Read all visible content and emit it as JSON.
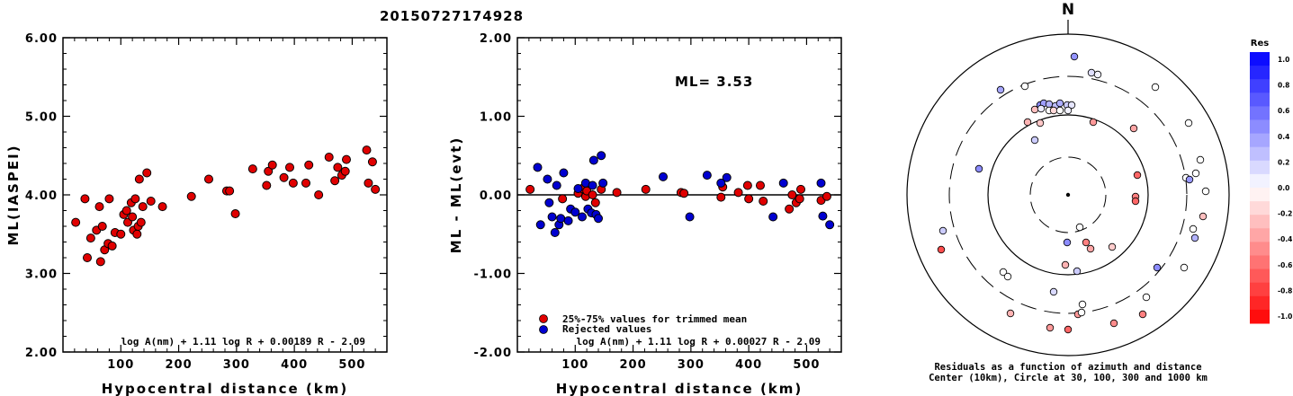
{
  "title": "20150727174928",
  "chart_data": [
    {
      "type": "scatter",
      "xlabel": "Hypocentral distance (km)",
      "ylabel": "ML(IASPEI)",
      "xlim": [
        0,
        560
      ],
      "ylim": [
        2.0,
        6.0
      ],
      "xticks": [
        "100",
        "200",
        "300",
        "400",
        "500"
      ],
      "yticks": [
        "2.00",
        "3.00",
        "4.00",
        "5.00",
        "6.00"
      ],
      "formula": "log A(nm) + 1.11 log R + 0.00189 R - 2.09",
      "series": [
        {
          "color": "#e00000",
          "points": [
            [
              22,
              3.65
            ],
            [
              38,
              3.95
            ],
            [
              42,
              3.2
            ],
            [
              48,
              3.45
            ],
            [
              58,
              3.55
            ],
            [
              63,
              3.85
            ],
            [
              65,
              3.15
            ],
            [
              68,
              3.6
            ],
            [
              72,
              3.3
            ],
            [
              78,
              3.38
            ],
            [
              80,
              3.95
            ],
            [
              85,
              3.35
            ],
            [
              90,
              3.52
            ],
            [
              100,
              3.5
            ],
            [
              105,
              3.75
            ],
            [
              110,
              3.8
            ],
            [
              112,
              3.65
            ],
            [
              118,
              3.9
            ],
            [
              120,
              3.72
            ],
            [
              122,
              3.55
            ],
            [
              125,
              3.95
            ],
            [
              128,
              3.5
            ],
            [
              130,
              3.6
            ],
            [
              132,
              4.2
            ],
            [
              135,
              3.65
            ],
            [
              138,
              3.85
            ],
            [
              145,
              4.28
            ],
            [
              152,
              3.92
            ],
            [
              172,
              3.85
            ],
            [
              222,
              3.98
            ],
            [
              252,
              4.2
            ],
            [
              283,
              4.05
            ],
            [
              288,
              4.05
            ],
            [
              298,
              3.76
            ],
            [
              328,
              4.33
            ],
            [
              352,
              4.12
            ],
            [
              355,
              4.3
            ],
            [
              362,
              4.38
            ],
            [
              382,
              4.22
            ],
            [
              392,
              4.35
            ],
            [
              398,
              4.15
            ],
            [
              420,
              4.15
            ],
            [
              425,
              4.38
            ],
            [
              442,
              4.0
            ],
            [
              460,
              4.48
            ],
            [
              470,
              4.18
            ],
            [
              475,
              4.35
            ],
            [
              482,
              4.25
            ],
            [
              488,
              4.3
            ],
            [
              490,
              4.45
            ],
            [
              525,
              4.57
            ],
            [
              528,
              4.15
            ],
            [
              535,
              4.42
            ],
            [
              540,
              4.07
            ]
          ]
        }
      ]
    },
    {
      "type": "scatter",
      "xlabel": "Hypocentral distance (km)",
      "ylabel": "ML - ML(evt)",
      "xlim": [
        0,
        560
      ],
      "ylim": [
        -2.0,
        2.0
      ],
      "xticks": [
        "100",
        "200",
        "300",
        "400",
        "500"
      ],
      "yticks": [
        "-2.00",
        "-1.00",
        "0.00",
        "1.00",
        "2.00"
      ],
      "annotation": "ML= 3.53",
      "formula": "log A(nm) + 1.11 log R + 0.00027 R - 2.09",
      "legend": [
        "25%-75% values for trimmed mean",
        "Rejected values"
      ],
      "series": [
        {
          "name": "25%-75% values for trimmed mean",
          "color": "#e00000",
          "points": [
            [
              22,
              0.07
            ],
            [
              78,
              -0.05
            ],
            [
              105,
              0.02
            ],
            [
              112,
              0.08
            ],
            [
              118,
              -0.02
            ],
            [
              120,
              0.05
            ],
            [
              130,
              0.0
            ],
            [
              135,
              -0.1
            ],
            [
              145,
              0.07
            ],
            [
              172,
              0.03
            ],
            [
              222,
              0.07
            ],
            [
              283,
              0.03
            ],
            [
              288,
              0.02
            ],
            [
              352,
              -0.03
            ],
            [
              355,
              0.1
            ],
            [
              382,
              0.03
            ],
            [
              398,
              0.12
            ],
            [
              400,
              -0.05
            ],
            [
              420,
              0.12
            ],
            [
              425,
              -0.08
            ],
            [
              470,
              -0.18
            ],
            [
              475,
              0.0
            ],
            [
              482,
              -0.1
            ],
            [
              488,
              -0.05
            ],
            [
              490,
              0.07
            ],
            [
              525,
              -0.07
            ],
            [
              535,
              -0.02
            ]
          ]
        },
        {
          "name": "Rejected values",
          "color": "#0000d0",
          "points": [
            [
              35,
              0.35
            ],
            [
              40,
              -0.38
            ],
            [
              52,
              0.2
            ],
            [
              55,
              -0.1
            ],
            [
              60,
              -0.28
            ],
            [
              65,
              -0.48
            ],
            [
              68,
              0.12
            ],
            [
              72,
              -0.38
            ],
            [
              75,
              -0.3
            ],
            [
              80,
              0.28
            ],
            [
              88,
              -0.33
            ],
            [
              92,
              -0.18
            ],
            [
              100,
              -0.22
            ],
            [
              105,
              0.08
            ],
            [
              112,
              -0.28
            ],
            [
              118,
              0.15
            ],
            [
              122,
              -0.18
            ],
            [
              128,
              -0.23
            ],
            [
              130,
              0.12
            ],
            [
              132,
              0.44
            ],
            [
              136,
              -0.25
            ],
            [
              140,
              -0.3
            ],
            [
              145,
              0.5
            ],
            [
              148,
              0.15
            ],
            [
              252,
              0.23
            ],
            [
              298,
              -0.28
            ],
            [
              328,
              0.25
            ],
            [
              352,
              0.15
            ],
            [
              362,
              0.22
            ],
            [
              442,
              -0.28
            ],
            [
              460,
              0.15
            ],
            [
              525,
              0.15
            ],
            [
              528,
              -0.27
            ],
            [
              540,
              -0.38
            ]
          ]
        }
      ]
    },
    {
      "type": "polar-scatter",
      "north_label": "N",
      "caption_line1": "Residuals as a function of azimuth and distance",
      "caption_line2": "Center (10km), Circle at 30, 100, 300 and 1000 km",
      "colorbar_title": "Res",
      "colorbar_ticks": [
        "1.0",
        "0.8",
        "0.6",
        "0.4",
        "0.2",
        "0.0",
        "-0.2",
        "-0.4",
        "-0.6",
        "-0.8",
        "-1.0"
      ],
      "points": [
        [
          0,
          -0.02
        ],
        [
          0,
          0.05
        ],
        [
          0,
          -0.1
        ],
        [
          0,
          0.35
        ],
        [
          0,
          0.2
        ],
        [
          0,
          0.12
        ],
        [
          0,
          0.18
        ],
        [
          0,
          0.4
        ],
        [
          0,
          0.25
        ],
        [
          0,
          0.3
        ],
        [
          0,
          -0.35
        ],
        [
          0,
          0.22
        ],
        [
          0,
          0.15
        ],
        [
          0,
          0.0
        ],
        [
          0,
          -0.05
        ],
        [
          0,
          0.45
        ],
        [
          0,
          0.5
        ],
        [
          0,
          0.28
        ],
        [
          0,
          0.02
        ],
        [
          0,
          0.4
        ],
        [
          0,
          -0.3
        ]
      ]
    }
  ],
  "polar_points": [
    [
      1194,
      63,
      0.42
    ],
    [
      1213,
      81,
      0.12
    ],
    [
      1220,
      83,
      0.05
    ],
    [
      1112,
      100,
      0.35
    ],
    [
      1139,
      96,
      0.0
    ],
    [
      1284,
      97,
      0.0
    ],
    [
      1156,
      117,
      0.45
    ],
    [
      1160,
      115,
      0.38
    ],
    [
      1166,
      116,
      0.3
    ],
    [
      1173,
      118,
      0.25
    ],
    [
      1178,
      115,
      0.32
    ],
    [
      1186,
      117,
      0.2
    ],
    [
      1191,
      117,
      0.1
    ],
    [
      1150,
      122,
      -0.25
    ],
    [
      1157,
      121,
      0.08
    ],
    [
      1166,
      123,
      0.0
    ],
    [
      1171,
      123,
      -0.15
    ],
    [
      1178,
      123,
      0.0
    ],
    [
      1187,
      123,
      0.05
    ],
    [
      1142,
      136,
      -0.3
    ],
    [
      1156,
      137,
      -0.22
    ],
    [
      1215,
      136,
      -0.4
    ],
    [
      1260,
      143,
      -0.35
    ],
    [
      1150,
      156,
      0.2
    ],
    [
      1321,
      137,
      0.0
    ],
    [
      1088,
      188,
      0.45
    ],
    [
      1264,
      195,
      -0.6
    ],
    [
      1334,
      178,
      0.0
    ],
    [
      1329,
      193,
      0.0
    ],
    [
      1318,
      198,
      0.0
    ],
    [
      1322,
      200,
      0.4
    ],
    [
      1340,
      213,
      0.0
    ],
    [
      1262,
      219,
      -0.5
    ],
    [
      1262,
      224,
      -0.6
    ],
    [
      1337,
      241,
      -0.25
    ],
    [
      1048,
      257,
      0.2
    ],
    [
      1326,
      255,
      0.0
    ],
    [
      1200,
      253,
      0.0
    ],
    [
      1046,
      278,
      -0.7
    ],
    [
      1328,
      265,
      0.3
    ],
    [
      1186,
      270,
      0.45
    ],
    [
      1207,
      270,
      -0.5
    ],
    [
      1212,
      277,
      -0.35
    ],
    [
      1236,
      275,
      -0.2
    ],
    [
      1286,
      298,
      0.45
    ],
    [
      1316,
      298,
      0.0
    ],
    [
      1184,
      295,
      -0.3
    ],
    [
      1197,
      302,
      0.2
    ],
    [
      1115,
      303,
      0.0
    ],
    [
      1120,
      308,
      0.0
    ],
    [
      1171,
      325,
      0.15
    ],
    [
      1274,
      331,
      0.0
    ],
    [
      1203,
      339,
      0.0
    ],
    [
      1123,
      349,
      -0.3
    ],
    [
      1198,
      350,
      -0.4
    ],
    [
      1202,
      348,
      0.0
    ],
    [
      1270,
      350,
      -0.5
    ],
    [
      1167,
      365,
      -0.4
    ],
    [
      1187,
      367,
      -0.6
    ],
    [
      1238,
      360,
      -0.45
    ]
  ]
}
